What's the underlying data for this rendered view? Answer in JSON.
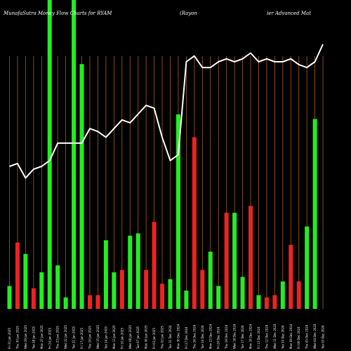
{
  "chart_data": {
    "type": "bar",
    "title_left": "MunafaSutra  Money Flow  Charts for RYAM",
    "title_mid": "(Rayon",
    "title_right": "ier Advanced Mat",
    "categories": [
      "Fri 31 Jan 2025",
      "Thu 30 Jan 2025",
      "Wed 29 Jan 2025",
      "Tue 28 Jan 2025",
      "Mon 27 Jan 2025",
      "Fri 24 Jan 2025",
      "Thu 23 Jan 2025",
      "Wed 22 Jan 2025",
      "Tue 21 Jan 2025",
      "Fri 17 Jan 2025",
      "Thu 16 Jan 2025",
      "Wed 15 Jan 2025",
      "Tue 14 Jan 2025",
      "Mon 13 Jan 2025",
      "Fri 10 Jan 2025",
      "Wed 08 Jan 2025",
      "Tue 07 Jan 2025",
      "Mon 06 Jan 2025",
      "Fri 03 Jan 2025",
      "Thu 02 Jan 2025",
      "Tue 31 Dec 2024",
      "Mon 30 Dec 2024",
      "Fri 27 Dec 2024",
      "Thu 26 Dec 2024",
      "Tue 24 Dec 2024",
      "Mon 23 Dec 2024",
      "Fri 20 Dec 2024",
      "Thu 19 Dec 2024",
      "Wed 18 Dec 2024",
      "Tue 17 Dec 2024",
      "Mon 16 Dec 2024",
      "Fri 13 Dec 2024",
      "Thu 12 Dec 2024",
      "Wed 11 Dec 2024",
      "Tue 10 Dec 2024",
      "Mon 09 Dec 2024",
      "Fri 06 Dec 2024",
      "Thu 05 Dec 2024",
      "Wed 04 Dec 2024",
      "Tue 03 Dec 2024"
    ],
    "bar_values": [
      10,
      29,
      24,
      9,
      16,
      249,
      19,
      5,
      249,
      107,
      6,
      6,
      30,
      16,
      17,
      32,
      33,
      17,
      38,
      11,
      13,
      85,
      8,
      75,
      17,
      25,
      10,
      42,
      42,
      14,
      45,
      6,
      5,
      6,
      12,
      28,
      12,
      36,
      83,
      0
    ],
    "bar_colors": [
      "#22ee22",
      "#ee2222",
      "#22ee22",
      "#ee2222",
      "#22ee22",
      "#22ee22",
      "#22ee22",
      "#22ee22",
      "#22ee22",
      "#22ee22",
      "#ee2222",
      "#ee2222",
      "#22ee22",
      "#22ee22",
      "#ee2222",
      "#22ee22",
      "#22ee22",
      "#ee2222",
      "#ee2222",
      "#ee2222",
      "#22ee22",
      "#22ee22",
      "#22ee22",
      "#ee2222",
      "#ee2222",
      "#22ee22",
      "#22ee22",
      "#ee2222",
      "#22ee22",
      "#22ee22",
      "#ee2222",
      "#22ee22",
      "#ee2222",
      "#ee2222",
      "#22ee22",
      "#ee2222",
      "#ee2222",
      "#22ee22",
      "#22ee22",
      "#22ee22"
    ],
    "line_values": [
      50,
      51,
      46,
      49,
      50,
      52,
      58,
      58,
      58,
      58,
      63,
      62,
      60,
      63,
      66,
      65,
      68,
      71,
      70,
      60,
      52,
      54,
      86,
      88,
      84,
      84,
      86,
      87,
      86,
      87,
      89,
      86,
      87,
      86,
      86,
      87,
      85,
      84,
      86,
      92
    ],
    "ylim": [
      0,
      100
    ],
    "bar_ylim": [
      0,
      135
    ],
    "grid": "vertical",
    "grid_color": "#a0621e"
  }
}
